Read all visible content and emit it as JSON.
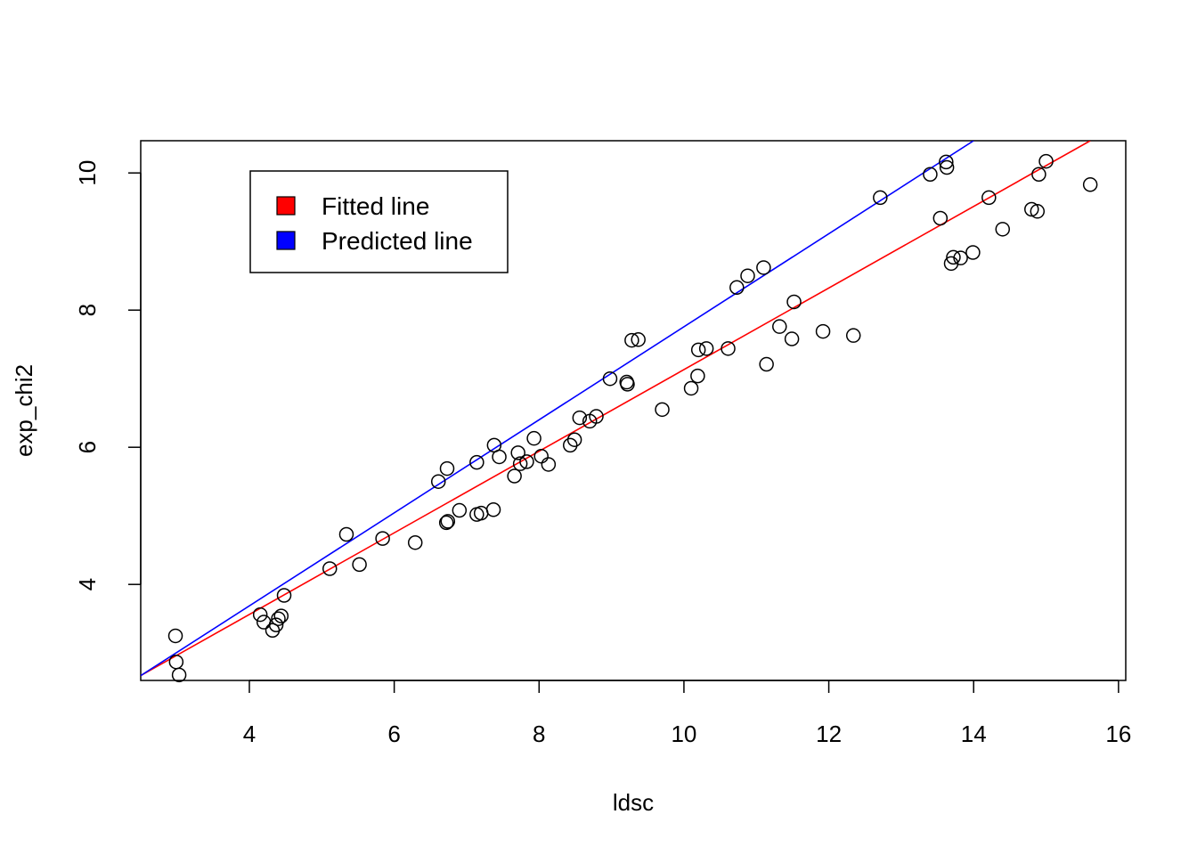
{
  "chart_data": {
    "type": "scatter",
    "xlabel": "ldsc",
    "ylabel": "exp_chi2",
    "xlim": [
      2.5,
      16.1
    ],
    "ylim": [
      2.6,
      10.47
    ],
    "xticks": [
      4,
      6,
      8,
      10,
      12,
      14,
      16
    ],
    "yticks": [
      4,
      6,
      8,
      10
    ],
    "grid": false,
    "legend_position": "top-left",
    "points": [
      {
        "x": 2.98,
        "y": 3.25
      },
      {
        "x": 2.99,
        "y": 2.87
      },
      {
        "x": 3.03,
        "y": 2.68
      },
      {
        "x": 4.15,
        "y": 3.56
      },
      {
        "x": 4.2,
        "y": 3.45
      },
      {
        "x": 4.32,
        "y": 3.33
      },
      {
        "x": 4.37,
        "y": 3.41
      },
      {
        "x": 4.4,
        "y": 3.5
      },
      {
        "x": 4.44,
        "y": 3.54
      },
      {
        "x": 4.48,
        "y": 3.84
      },
      {
        "x": 5.11,
        "y": 4.23
      },
      {
        "x": 5.34,
        "y": 4.73
      },
      {
        "x": 5.52,
        "y": 4.29
      },
      {
        "x": 5.84,
        "y": 4.67
      },
      {
        "x": 6.29,
        "y": 4.61
      },
      {
        "x": 6.61,
        "y": 5.5
      },
      {
        "x": 6.73,
        "y": 5.69
      },
      {
        "x": 6.72,
        "y": 4.9
      },
      {
        "x": 6.74,
        "y": 4.92
      },
      {
        "x": 6.9,
        "y": 5.08
      },
      {
        "x": 7.14,
        "y": 5.02
      },
      {
        "x": 7.14,
        "y": 5.78
      },
      {
        "x": 7.2,
        "y": 5.04
      },
      {
        "x": 7.37,
        "y": 5.09
      },
      {
        "x": 7.38,
        "y": 6.03
      },
      {
        "x": 7.45,
        "y": 5.86
      },
      {
        "x": 7.66,
        "y": 5.58
      },
      {
        "x": 7.71,
        "y": 5.92
      },
      {
        "x": 7.74,
        "y": 5.76
      },
      {
        "x": 7.83,
        "y": 5.79
      },
      {
        "x": 7.93,
        "y": 6.13
      },
      {
        "x": 8.03,
        "y": 5.87
      },
      {
        "x": 8.13,
        "y": 5.75
      },
      {
        "x": 8.43,
        "y": 6.03
      },
      {
        "x": 8.49,
        "y": 6.11
      },
      {
        "x": 8.56,
        "y": 6.43
      },
      {
        "x": 8.7,
        "y": 6.38
      },
      {
        "x": 8.79,
        "y": 6.45
      },
      {
        "x": 8.98,
        "y": 7.0
      },
      {
        "x": 9.21,
        "y": 6.95
      },
      {
        "x": 9.22,
        "y": 6.92
      },
      {
        "x": 9.28,
        "y": 7.56
      },
      {
        "x": 9.37,
        "y": 7.57
      },
      {
        "x": 9.7,
        "y": 6.55
      },
      {
        "x": 10.1,
        "y": 6.86
      },
      {
        "x": 10.19,
        "y": 7.04
      },
      {
        "x": 10.2,
        "y": 7.42
      },
      {
        "x": 10.31,
        "y": 7.44
      },
      {
        "x": 10.61,
        "y": 7.44
      },
      {
        "x": 10.73,
        "y": 8.33
      },
      {
        "x": 10.88,
        "y": 8.5
      },
      {
        "x": 11.1,
        "y": 8.62
      },
      {
        "x": 11.14,
        "y": 7.21
      },
      {
        "x": 11.32,
        "y": 7.76
      },
      {
        "x": 11.49,
        "y": 7.58
      },
      {
        "x": 11.52,
        "y": 8.12
      },
      {
        "x": 11.92,
        "y": 7.69
      },
      {
        "x": 12.34,
        "y": 7.63
      },
      {
        "x": 12.71,
        "y": 9.64
      },
      {
        "x": 13.4,
        "y": 9.98
      },
      {
        "x": 13.54,
        "y": 9.34
      },
      {
        "x": 13.62,
        "y": 10.16
      },
      {
        "x": 13.63,
        "y": 10.08
      },
      {
        "x": 13.69,
        "y": 8.68
      },
      {
        "x": 13.72,
        "y": 8.77
      },
      {
        "x": 13.82,
        "y": 8.76
      },
      {
        "x": 13.99,
        "y": 8.84
      },
      {
        "x": 14.21,
        "y": 9.64
      },
      {
        "x": 14.4,
        "y": 9.18
      },
      {
        "x": 14.8,
        "y": 9.47
      },
      {
        "x": 14.88,
        "y": 9.44
      },
      {
        "x": 14.9,
        "y": 9.98
      },
      {
        "x": 15.0,
        "y": 10.17
      },
      {
        "x": 15.61,
        "y": 9.83
      }
    ],
    "series": [
      {
        "name": "Fitted line",
        "color": "#ff0000",
        "x": [
          2.5,
          15.61
        ],
        "y": [
          2.67,
          10.47
        ]
      },
      {
        "name": "Predicted line",
        "color": "#0000ff",
        "x": [
          2.5,
          14.0
        ],
        "y": [
          2.67,
          10.47
        ]
      }
    ]
  }
}
